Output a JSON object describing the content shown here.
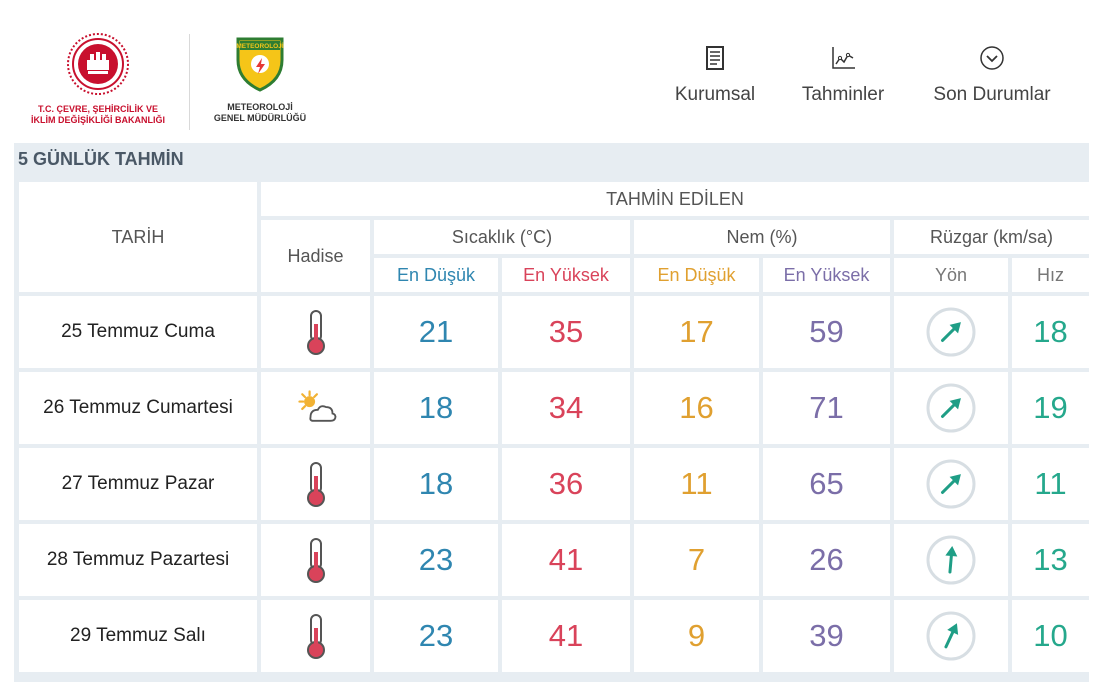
{
  "header": {
    "ministry_name_line1": "T.C. ÇEVRE, ŞEHİRCİLİK VE",
    "ministry_name_line2": "İKLİM DEĞİŞİKLİĞİ BAKANLIĞI",
    "mgm_logo_text": "METEOROLOJİ",
    "mgm_name_line1": "METEOROLOJİ",
    "mgm_name_line2": "GENEL MÜDÜRLÜĞÜ",
    "nav": {
      "kurumsal": "Kurumsal",
      "tahminler": "Tahminler",
      "son_durumlar": "Son Durumlar"
    }
  },
  "section": {
    "title": "5 GÜNLÜK TAHMİN"
  },
  "table": {
    "col_date": "TARİH",
    "group_forecast": "TAHMİN EDİLEN",
    "col_event": "Hadise",
    "group_temp": "Sıcaklık (°C)",
    "group_humidity": "Nem (%)",
    "group_wind": "Rüzgar (km/sa)",
    "sub_temp_min": "En Düşük",
    "sub_temp_max": "En Yüksek",
    "sub_hum_min": "En Düşük",
    "sub_hum_max": "En Yüksek",
    "sub_wind_dir": "Yön",
    "sub_wind_speed": "Hız",
    "rows": [
      {
        "date": "25 Temmuz Cuma",
        "event_icon": "thermometer-hot-icon",
        "temp_min": "21",
        "temp_max": "35",
        "hum_min": "17",
        "hum_max": "59",
        "wind_dir_icon": "arrow-southwest-icon",
        "wind_dir_deg": 225,
        "wind_speed": "18"
      },
      {
        "date": "26 Temmuz Cumartesi",
        "event_icon": "partly-cloudy-icon",
        "temp_min": "18",
        "temp_max": "34",
        "hum_min": "16",
        "hum_max": "71",
        "wind_dir_icon": "arrow-southwest-icon",
        "wind_dir_deg": 225,
        "wind_speed": "19"
      },
      {
        "date": "27 Temmuz Pazar",
        "event_icon": "thermometer-hot-icon",
        "temp_min": "18",
        "temp_max": "36",
        "hum_min": "11",
        "hum_max": "65",
        "wind_dir_icon": "arrow-southwest-icon",
        "wind_dir_deg": 225,
        "wind_speed": "11"
      },
      {
        "date": "28 Temmuz Pazartesi",
        "event_icon": "thermometer-hot-icon",
        "temp_min": "23",
        "temp_max": "41",
        "hum_min": "7",
        "hum_max": "26",
        "wind_dir_icon": "arrow-south-icon",
        "wind_dir_deg": 185,
        "wind_speed": "13"
      },
      {
        "date": "29 Temmuz Salı",
        "event_icon": "thermometer-hot-icon",
        "temp_min": "23",
        "temp_max": "41",
        "hum_min": "9",
        "hum_max": "39",
        "wind_dir_icon": "arrow-southwest-icon",
        "wind_dir_deg": 205,
        "wind_speed": "10"
      }
    ]
  },
  "colors": {
    "blue": "#2f86b0",
    "red": "#d9435a",
    "orange": "#e0a030",
    "purple": "#7b6ea8",
    "teal": "#25a88c",
    "grid": "#e7edf2"
  }
}
